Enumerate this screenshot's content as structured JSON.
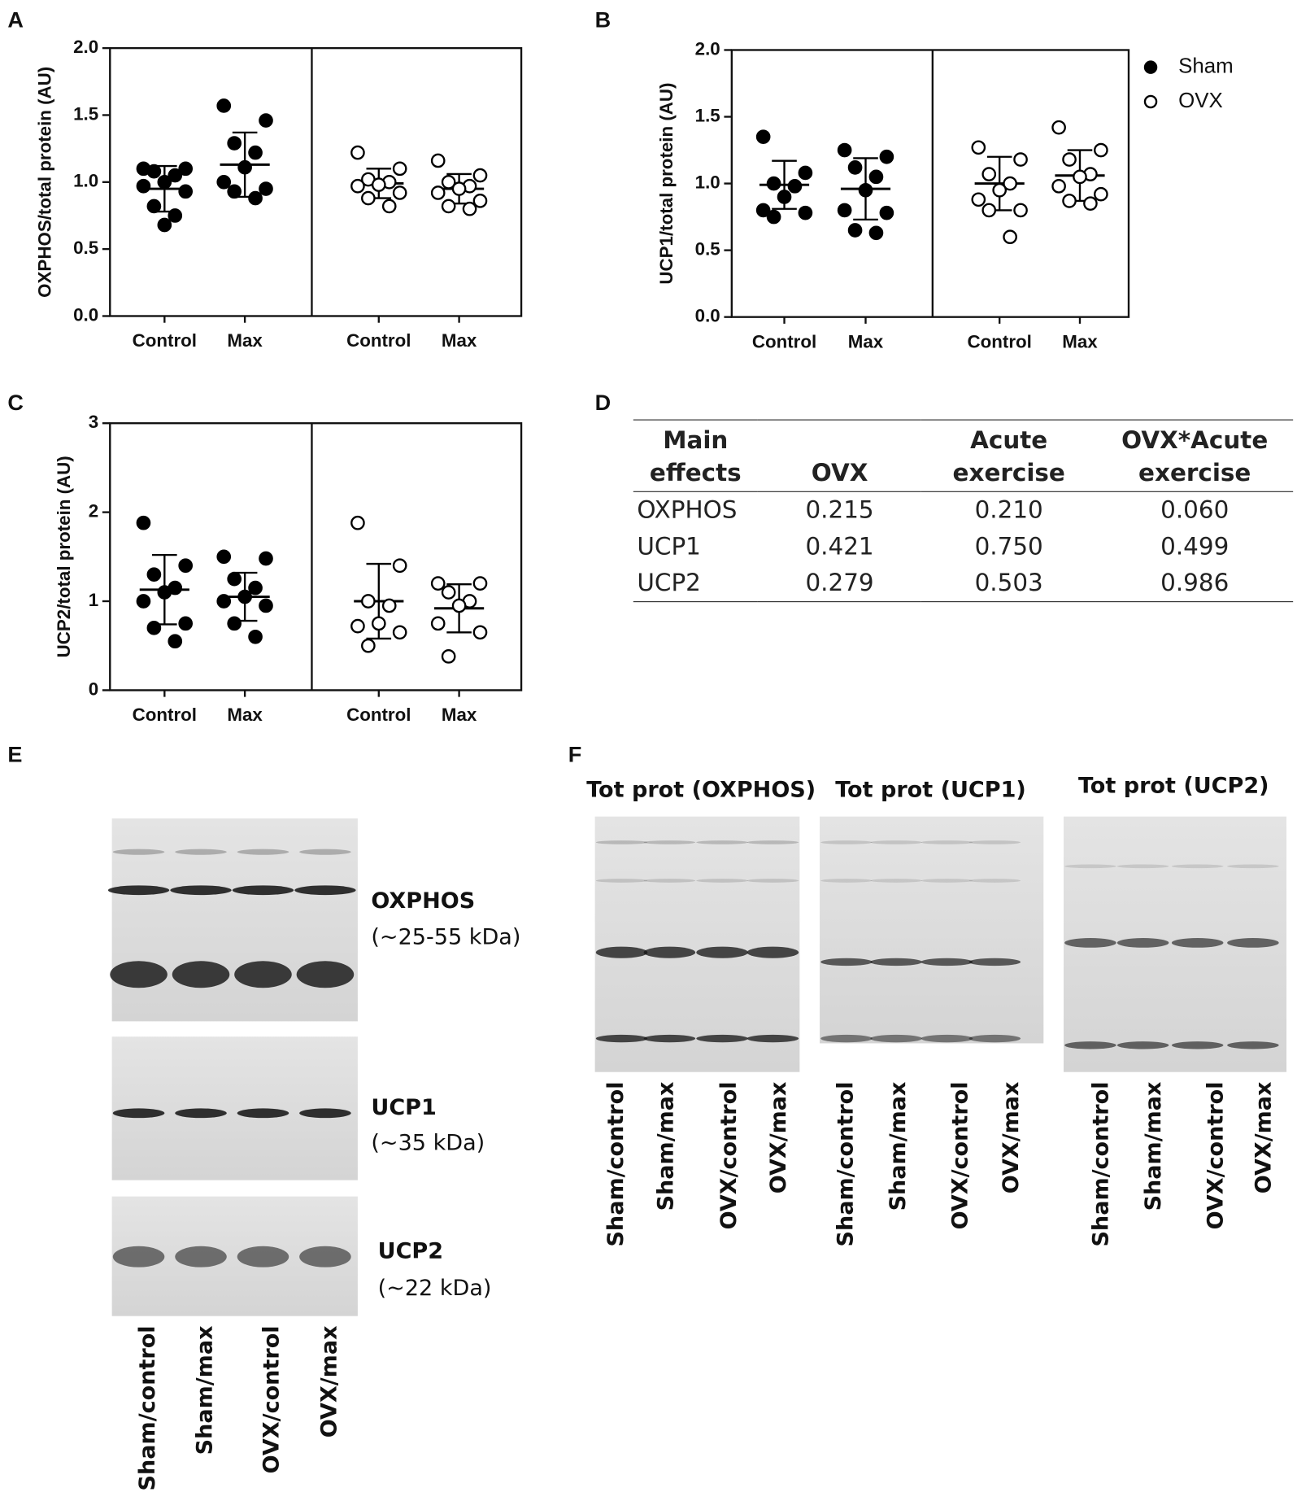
{
  "panel_labels": [
    "A",
    "B",
    "C",
    "D",
    "E",
    "F"
  ],
  "chart_data": [
    {
      "type": "strip",
      "y_label": "OXPHOS/total protein (AU)",
      "categories": [
        "Control",
        "Max",
        "Control",
        "Max"
      ],
      "ylim": [
        0,
        2
      ],
      "yticks": [
        {
          "value": 0,
          "label": "0.0"
        },
        {
          "value": 0.5,
          "label": "0.5"
        },
        {
          "value": 1,
          "label": "1.0"
        },
        {
          "value": 1.5,
          "label": "1.5"
        },
        {
          "value": 2,
          "label": "2.0"
        }
      ],
      "color": "#000000",
      "groups": [
        {
          "marker": "filled",
          "points": [
            1.1,
            1.1,
            1.08,
            1.05,
            1.0,
            0.97,
            0.93,
            0.82,
            0.75,
            0.68
          ],
          "mean": 0.95,
          "sd": 0.17
        },
        {
          "marker": "filled",
          "points": [
            1.57,
            1.46,
            1.29,
            1.22,
            1.11,
            1.0,
            0.95,
            0.93,
            0.88
          ],
          "mean": 1.13,
          "sd": 0.24
        },
        {
          "marker": "open",
          "points": [
            1.22,
            1.1,
            1.02,
            1.0,
            0.98,
            0.97,
            0.92,
            0.88,
            0.82
          ],
          "mean": 0.99,
          "sd": 0.11
        },
        {
          "marker": "open",
          "points": [
            1.16,
            1.05,
            1.0,
            0.97,
            0.95,
            0.92,
            0.86,
            0.82,
            0.8
          ],
          "mean": 0.95,
          "sd": 0.11
        }
      ]
    },
    {
      "type": "strip",
      "y_label": "UCP1/total protein (AU)",
      "categories": [
        "Control",
        "Max",
        "Control",
        "Max"
      ],
      "ylim": [
        0,
        2
      ],
      "yticks": [
        {
          "value": 0,
          "label": "0.0"
        },
        {
          "value": 0.5,
          "label": "0.5"
        },
        {
          "value": 1,
          "label": "1.0"
        },
        {
          "value": 1.5,
          "label": "1.5"
        },
        {
          "value": 2,
          "label": "2.0"
        }
      ],
      "color": "#000000",
      "legend": [
        {
          "name": "Sham",
          "marker": "filled"
        },
        {
          "name": "OVX",
          "marker": "open"
        }
      ],
      "groups": [
        {
          "marker": "filled",
          "points": [
            1.35,
            1.08,
            1.0,
            0.98,
            0.9,
            0.8,
            0.78,
            0.75
          ],
          "mean": 0.99,
          "sd": 0.18
        },
        {
          "marker": "filled",
          "points": [
            1.25,
            1.2,
            1.12,
            1.05,
            0.95,
            0.8,
            0.78,
            0.65,
            0.63
          ],
          "mean": 0.96,
          "sd": 0.23
        },
        {
          "marker": "open",
          "points": [
            1.27,
            1.18,
            1.07,
            1.0,
            0.95,
            0.88,
            0.8,
            0.8,
            0.6
          ],
          "mean": 1.0,
          "sd": 0.2
        },
        {
          "marker": "open",
          "points": [
            1.42,
            1.25,
            1.18,
            1.07,
            1.05,
            0.98,
            0.92,
            0.87,
            0.85
          ],
          "mean": 1.06,
          "sd": 0.19
        }
      ]
    },
    {
      "type": "strip",
      "y_label": "UCP2/total protein (AU)",
      "categories": [
        "Control",
        "Max",
        "Control",
        "Max"
      ],
      "ylim": [
        0,
        3
      ],
      "yticks": [
        0,
        1,
        2,
        3
      ],
      "color": "#000000",
      "groups": [
        {
          "marker": "filled",
          "points": [
            1.88,
            1.4,
            1.3,
            1.15,
            1.1,
            1.0,
            0.75,
            0.7,
            0.55
          ],
          "mean": 1.13,
          "sd": 0.39
        },
        {
          "marker": "filled",
          "points": [
            1.5,
            1.48,
            1.25,
            1.15,
            1.05,
            1.0,
            0.95,
            0.75,
            0.6
          ],
          "mean": 1.05,
          "sd": 0.27
        },
        {
          "marker": "open",
          "points": [
            1.88,
            1.4,
            1.0,
            0.95,
            0.75,
            0.72,
            0.65,
            0.5
          ],
          "mean": 1.0,
          "sd": 0.42
        },
        {
          "marker": "open",
          "points": [
            1.2,
            1.2,
            1.1,
            1.0,
            0.95,
            0.75,
            0.65,
            0.38
          ],
          "mean": 0.92,
          "sd": 0.27
        }
      ]
    }
  ],
  "table": {
    "header": [
      "Main effects",
      "OVX",
      "Acute exercise",
      "OVX*Acute exercise"
    ],
    "rows": [
      [
        "OXPHOS",
        "0.215",
        "0.210",
        "0.060"
      ],
      [
        "UCP1",
        "0.421",
        "0.750",
        "0.499"
      ],
      [
        "UCP2",
        "0.279",
        "0.503",
        "0.986"
      ]
    ]
  },
  "blots": {
    "lanes": [
      "Sham/control",
      "Sham/max",
      "OVX/control",
      "OVX/max"
    ],
    "E": [
      {
        "name": "OXPHOS",
        "size": "(~25-55 kDa)"
      },
      {
        "name": "UCP1",
        "size": "(~35 kDa)"
      },
      {
        "name": "UCP2",
        "size": "(~22 kDa)"
      }
    ],
    "F": [
      "Tot prot (OXPHOS)",
      "Tot prot (UCP1)",
      "Tot prot (UCP2)"
    ]
  }
}
